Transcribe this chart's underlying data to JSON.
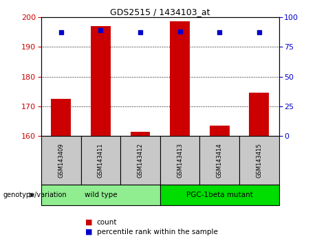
{
  "title": "GDS2515 / 1434103_at",
  "samples": [
    "GSM143409",
    "GSM143411",
    "GSM143412",
    "GSM143413",
    "GSM143414",
    "GSM143415"
  ],
  "count_values": [
    172.5,
    197.0,
    161.5,
    198.5,
    163.5,
    174.5
  ],
  "percentile_values": [
    87,
    89,
    87,
    88,
    87,
    87
  ],
  "ylim_left": [
    160,
    200
  ],
  "ylim_right": [
    0,
    100
  ],
  "yticks_left": [
    160,
    170,
    180,
    190,
    200
  ],
  "yticks_right": [
    0,
    25,
    50,
    75,
    100
  ],
  "groups": [
    {
      "label": "wild type",
      "color": "#90EE90",
      "start": 0,
      "end": 2
    },
    {
      "label": "PGC-1beta mutant",
      "color": "#00DD00",
      "start": 3,
      "end": 5
    }
  ],
  "bar_color": "#CC0000",
  "dot_color": "#0000CC",
  "bar_width": 0.5,
  "axis_color_left": "#CC0000",
  "axis_color_right": "#0000CC",
  "tick_label_bg": "#C8C8C8",
  "legend_count_color": "#CC0000",
  "legend_percentile_color": "#0000CC",
  "legend_count_label": "count",
  "legend_percentile_label": "percentile rank within the sample",
  "genotype_label": "genotype/variation"
}
